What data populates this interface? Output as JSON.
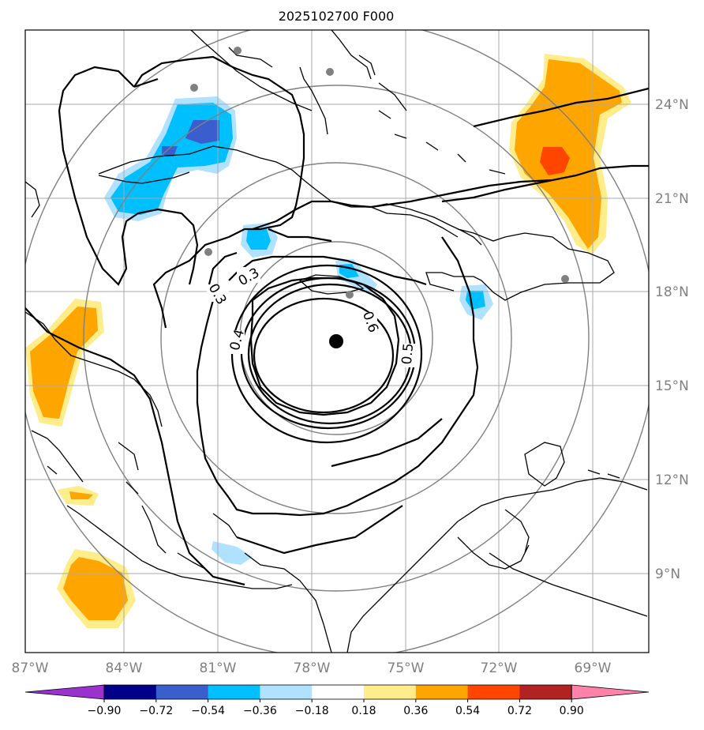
{
  "title": "2025102700 F000",
  "map": {
    "lon_labels": [
      "87°W",
      "84°W",
      "81°W",
      "78°W",
      "75°W",
      "72°W",
      "69°W"
    ],
    "lat_labels": [
      "24°N",
      "21°N",
      "18°N",
      "15°N",
      "12°N",
      "9°N"
    ],
    "center_marker": "storm-center"
  },
  "contour_labels": [
    "0.3",
    "0.3",
    "0.4",
    "0.6",
    "0.5"
  ],
  "colorbar": {
    "ticks": [
      "−0.90",
      "−0.72",
      "−0.54",
      "−0.36",
      "−0.18",
      "0.18",
      "0.36",
      "0.54",
      "0.72",
      "0.90"
    ],
    "colors": [
      "#9a32cd",
      "#00008b",
      "#3a5fcd",
      "#00bfff",
      "#b0e2ff",
      "#ffffff",
      "#ffec8b",
      "#ffa500",
      "#ff4500",
      "#b22222",
      "#ff82ab"
    ]
  }
}
